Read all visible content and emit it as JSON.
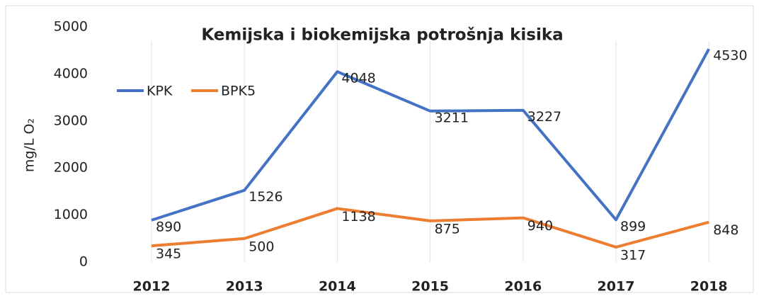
{
  "chart_data": {
    "type": "line",
    "title": "Kemijska i biokemijska potrošnja kisika",
    "y_label": "mg/L O₂",
    "categories": [
      "2012",
      "2013",
      "2014",
      "2015",
      "2016",
      "2017",
      "2018"
    ],
    "series": [
      {
        "name": "KPK",
        "color": "#4472c4",
        "values": [
          890,
          1526,
          4048,
          3211,
          3227,
          899,
          4530
        ]
      },
      {
        "name": "BPK5",
        "color": "#ed7d31",
        "values": [
          345,
          500,
          1138,
          875,
          940,
          317,
          848
        ]
      }
    ],
    "ylim": [
      0,
      5000
    ],
    "yticks": [
      0,
      1000,
      2000,
      3000,
      4000,
      5000
    ],
    "grid": "x",
    "legend": "top-left"
  }
}
